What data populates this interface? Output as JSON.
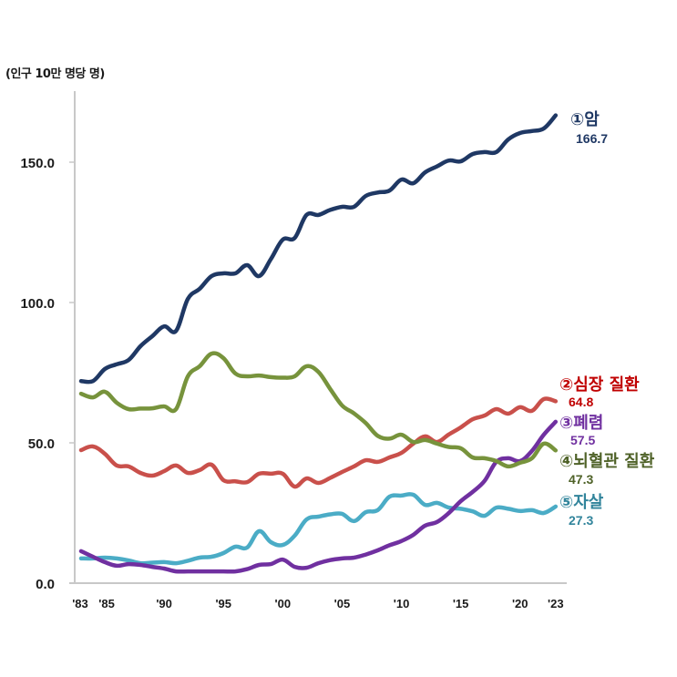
{
  "chart_data": {
    "type": "line",
    "title": "",
    "unit_label": "(인구 10만 명당 명)",
    "xlabel": "",
    "ylabel": "(인구 10만 명당 명)",
    "ylim": [
      0,
      170
    ],
    "yticks": [
      0,
      50,
      100,
      150
    ],
    "ytick_labels": [
      "0.0",
      "50.0",
      "100.0",
      "150.0"
    ],
    "xlim": [
      1983,
      2023
    ],
    "xticks": [
      1983,
      1985,
      1990,
      1995,
      2000,
      2005,
      2010,
      2015,
      2020,
      2023
    ],
    "xtick_labels": [
      "'83",
      "'85",
      "'90",
      "'95",
      "'00",
      "'05",
      "'10",
      "'15",
      "'20",
      "'23"
    ],
    "grid": false,
    "legend": "inline-right",
    "x": [
      1983,
      1984,
      1985,
      1986,
      1987,
      1988,
      1989,
      1990,
      1991,
      1992,
      1993,
      1994,
      1995,
      1996,
      1997,
      1998,
      1999,
      2000,
      2001,
      2002,
      2003,
      2004,
      2005,
      2006,
      2007,
      2008,
      2009,
      2010,
      2011,
      2012,
      2013,
      2014,
      2015,
      2016,
      2017,
      2018,
      2019,
      2020,
      2021,
      2022,
      2023
    ],
    "series": [
      {
        "name": "암",
        "rank_label": "①암",
        "final_value_label": "166.7",
        "color": "#1f3864",
        "label_color": "#1f3864",
        "values": [
          72.0,
          72.0,
          76.3,
          78.0,
          79.5,
          84.4,
          88.0,
          91.5,
          89.9,
          101.3,
          104.9,
          109.4,
          110.4,
          110.4,
          113.3,
          109.4,
          115.5,
          122.4,
          123.0,
          131.2,
          131.2,
          133.0,
          134.1,
          134.1,
          138.0,
          139.2,
          139.9,
          143.8,
          142.5,
          146.4,
          148.5,
          150.6,
          150.3,
          152.9,
          153.6,
          153.6,
          158.1,
          160.4,
          161.1,
          162.0,
          166.7
        ]
      },
      {
        "name": "심장 질환",
        "rank_label": "②심장 질환",
        "final_value_label": "64.8",
        "color": "#c9504b",
        "label_color": "#c00000",
        "values": [
          47.4,
          48.7,
          46.1,
          41.9,
          41.6,
          39.3,
          38.3,
          39.9,
          41.9,
          39.3,
          40.3,
          42.2,
          36.7,
          36.3,
          36.0,
          39.0,
          39.0,
          39.0,
          34.4,
          37.3,
          35.7,
          37.5,
          39.6,
          41.6,
          43.8,
          43.2,
          44.8,
          46.4,
          49.7,
          52.3,
          50.3,
          53.0,
          55.5,
          58.4,
          59.7,
          62.0,
          60.4,
          62.7,
          61.4,
          65.6,
          64.8
        ]
      },
      {
        "name": "폐렴",
        "rank_label": "③폐렴",
        "final_value_label": "57.5",
        "color": "#7030a0",
        "label_color": "#7030a0",
        "values": [
          11.4,
          9.4,
          7.5,
          6.2,
          6.8,
          6.5,
          5.8,
          5.2,
          4.2,
          4.2,
          4.2,
          4.2,
          4.2,
          4.2,
          5.0,
          6.5,
          6.8,
          8.4,
          5.8,
          5.5,
          7.1,
          8.2,
          8.8,
          9.1,
          10.2,
          11.7,
          13.5,
          15.0,
          17.2,
          20.5,
          21.8,
          25.0,
          29.2,
          32.5,
          36.4,
          43.2,
          44.5,
          43.5,
          47.1,
          52.9,
          57.5
        ]
      },
      {
        "name": "뇌혈관 질환",
        "rank_label": "④뇌혈관 질환",
        "final_value_label": "47.3",
        "color": "#77933c",
        "label_color": "#4f6228",
        "values": [
          67.5,
          66.2,
          68.2,
          64.3,
          62.0,
          62.2,
          62.3,
          63.0,
          62.0,
          73.7,
          77.3,
          81.8,
          80.2,
          74.7,
          73.7,
          74.0,
          73.4,
          73.2,
          73.7,
          77.3,
          75.3,
          69.2,
          63.3,
          60.5,
          57.0,
          52.5,
          51.5,
          52.9,
          50.3,
          51.0,
          49.7,
          48.5,
          48.1,
          44.8,
          44.5,
          43.5,
          41.6,
          42.9,
          44.5,
          49.7,
          47.3
        ]
      },
      {
        "name": "자살",
        "rank_label": "⑤자살",
        "final_value_label": "27.3",
        "color": "#4bacc6",
        "label_color": "#31849b",
        "values": [
          8.8,
          8.8,
          9.1,
          8.8,
          8.1,
          7.1,
          7.3,
          7.5,
          7.1,
          8.0,
          9.1,
          9.4,
          10.7,
          13.0,
          12.7,
          18.5,
          14.6,
          13.6,
          16.9,
          22.7,
          23.7,
          24.5,
          24.7,
          22.1,
          25.3,
          26.0,
          30.8,
          31.2,
          31.5,
          27.9,
          28.6,
          26.9,
          26.5,
          25.6,
          24.0,
          26.9,
          26.5,
          25.7,
          26.0,
          25.0,
          27.3
        ]
      }
    ]
  }
}
